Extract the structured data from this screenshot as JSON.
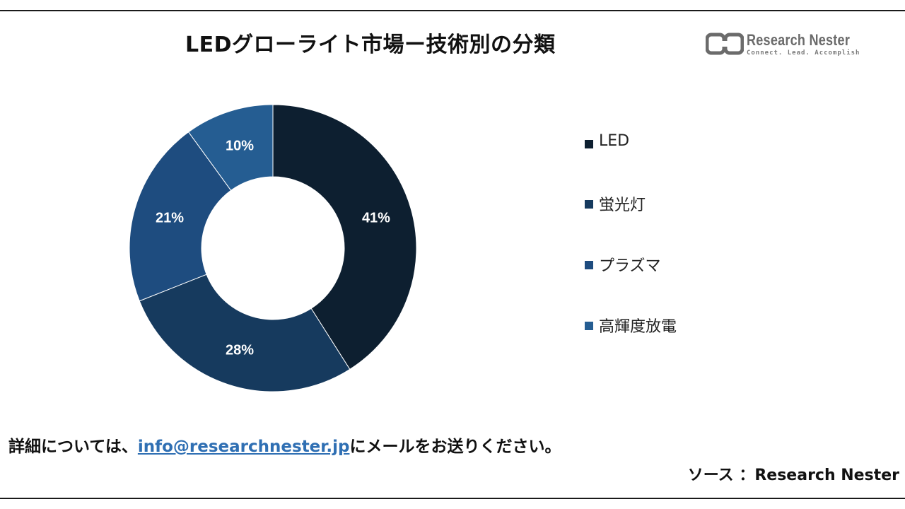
{
  "title": "LEDグローライト市場ー技術別の分類",
  "logo": {
    "name": "Research Nester",
    "tagline": "Connect. Lead. Accomplish"
  },
  "chart_data": {
    "type": "pie",
    "style": "donut",
    "categories": [
      "LED",
      "蛍光灯",
      "プラズマ",
      "高輝度放電"
    ],
    "values": [
      41,
      28,
      21,
      10
    ],
    "value_labels": [
      "41%",
      "28%",
      "21%",
      "10%"
    ],
    "colors": [
      "#0d1f30",
      "#163a5e",
      "#1e4c7f",
      "#255d92"
    ],
    "legend_position": "right",
    "title": "LEDグローライト市場ー技術別の分類"
  },
  "footer": {
    "prefix": "詳細については、",
    "email": "info@researchnester.jp",
    "suffix": "にメールをお送りください。"
  },
  "source": "ソース ：Research Nester"
}
